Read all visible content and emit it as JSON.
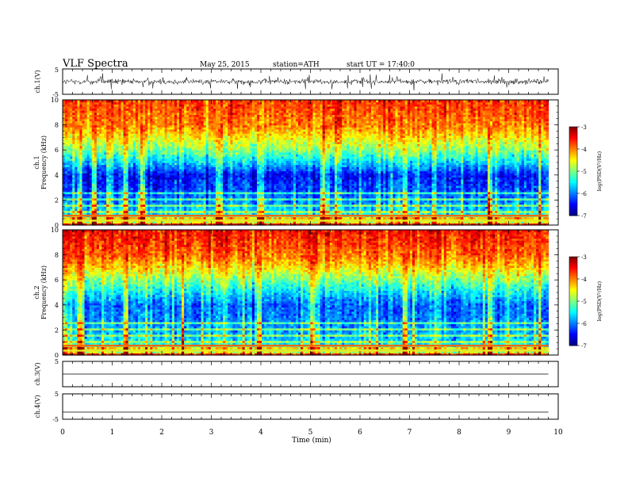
{
  "header": {
    "title": "VLF  Spectra",
    "date": "May 25, 2015",
    "station": "station=ATH",
    "start": "start  UT  =    17:40:0"
  },
  "chart_data": [
    {
      "type": "line",
      "ylabel": "ch.1(V)",
      "ylim": [
        -5,
        5
      ],
      "yticks": [
        "5",
        "-5"
      ],
      "x": [
        0,
        1,
        2,
        3,
        4,
        5,
        6,
        7,
        8,
        9,
        9.8
      ],
      "series": [
        {
          "values": [
            0,
            0,
            0,
            0,
            0,
            0,
            0,
            0,
            0,
            0,
            0
          ]
        }
      ],
      "note_signal_band": [
        -1.5,
        1.5
      ]
    },
    {
      "type": "heatmap",
      "ylabel": "ch.1\nFrequency  (kHz)",
      "ylabel_lines": [
        "ch.1",
        "Frequency  (kHz)"
      ],
      "ylim": [
        0,
        10
      ],
      "yticks": [
        "0",
        "2",
        "4",
        "6",
        "8",
        "10"
      ],
      "xlim": [
        0,
        10
      ],
      "data_end_min": 9.8,
      "colorbar": {
        "label": "log(PSD(V²/Hz)",
        "ticks": [
          "-3",
          "-4",
          "-5",
          "-6",
          "-7"
        ],
        "range": [
          -7,
          -3
        ]
      },
      "frequency_profile_kHz": [
        0,
        1,
        2,
        3,
        4,
        5,
        6,
        7,
        8,
        10
      ],
      "log_psd_profile": [
        -4.3,
        -5.6,
        -6.0,
        -6.3,
        -6.5,
        -5.7,
        -5.0,
        -4.5,
        -4.0,
        -3.7
      ],
      "strong_events_min": [
        0.3,
        0.6,
        1.25,
        1.6,
        3.1,
        4.0,
        5.2,
        6.9,
        8.6,
        9.6
      ]
    },
    {
      "type": "heatmap",
      "ylabel": "ch.2\nFrequency  (kHz)",
      "ylabel_lines": [
        "ch.2",
        "Frequency  (kHz)"
      ],
      "ylim": [
        0,
        10
      ],
      "yticks": [
        "0",
        "2",
        "4",
        "6",
        "8",
        "10"
      ],
      "xlim": [
        0,
        10
      ],
      "data_end_min": 9.8,
      "colorbar": {
        "label": "log(PSD(V²/Hz)",
        "ticks": [
          "-3",
          "-4",
          "-5",
          "-6",
          "-7"
        ],
        "range": [
          -7,
          -3
        ]
      },
      "frequency_profile_kHz": [
        0,
        1,
        2,
        3,
        4,
        5,
        6,
        7,
        8,
        10
      ],
      "log_psd_profile": [
        -4.4,
        -5.6,
        -5.8,
        -6.0,
        -6.1,
        -5.6,
        -5.0,
        -4.4,
        -3.9,
        -3.5
      ],
      "strong_events_min": [
        0.3,
        1.25,
        2.4,
        3.95,
        5.0,
        6.9,
        8.6,
        9.6
      ]
    },
    {
      "type": "line",
      "ylabel": "ch.3(V)",
      "ylim": [
        -5,
        5
      ],
      "yticks": [
        "5",
        "-5"
      ],
      "x": [
        0,
        9.8
      ],
      "series": [
        {
          "values": [
            0,
            0
          ]
        }
      ]
    },
    {
      "type": "line",
      "ylabel": "ch.4(V)",
      "ylim": [
        -5,
        5
      ],
      "yticks": [
        "5",
        "-5"
      ],
      "x": [
        0,
        9.8
      ],
      "series": [
        {
          "values": [
            -2.2,
            -2.2
          ]
        }
      ],
      "xlabel": "Time  (min)",
      "xlim": [
        0,
        10
      ],
      "xticks": [
        "0",
        "1",
        "2",
        "3",
        "4",
        "5",
        "6",
        "7",
        "8",
        "9",
        "10"
      ]
    }
  ]
}
